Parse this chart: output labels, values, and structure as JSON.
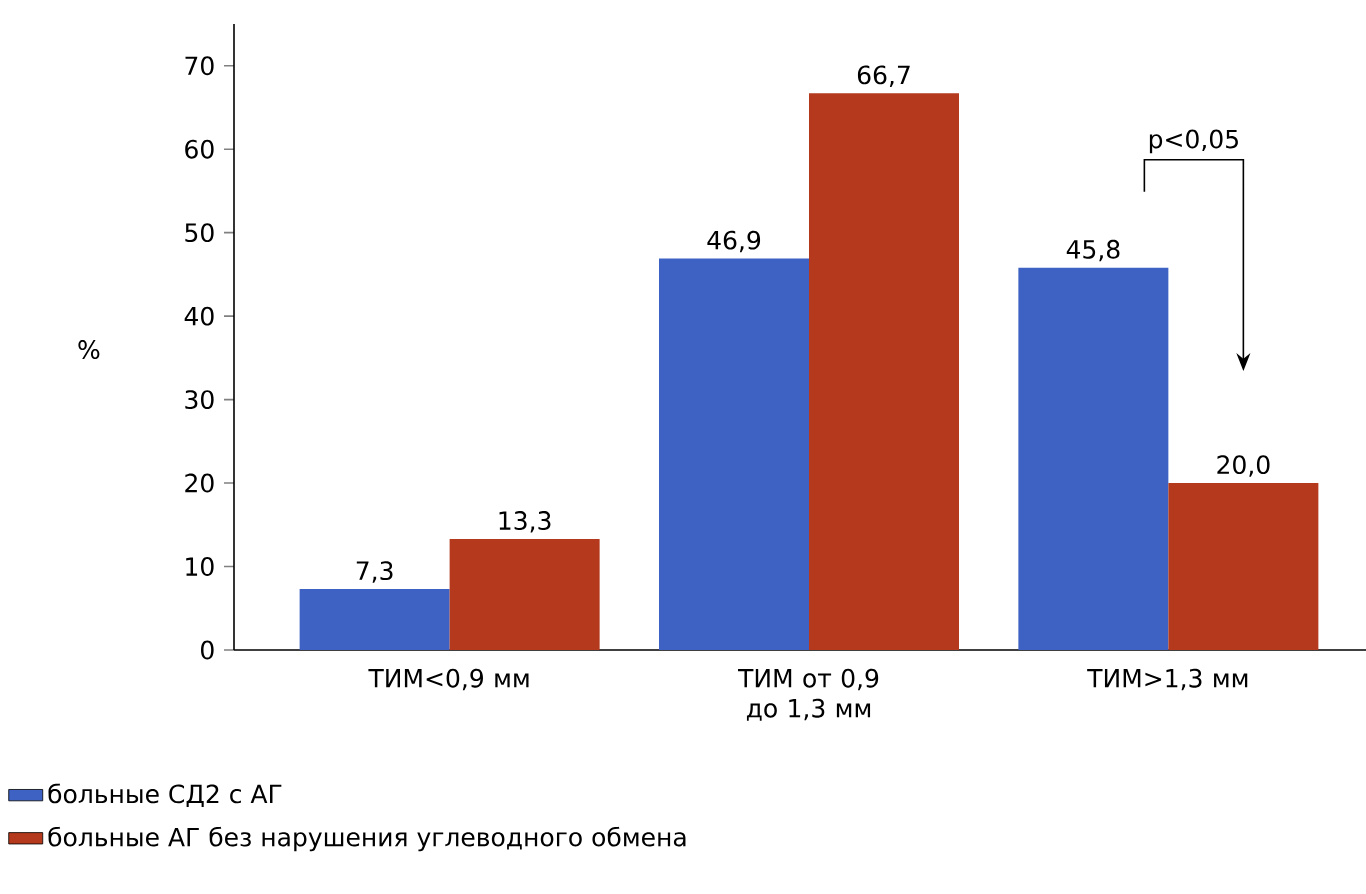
{
  "chart_data": {
    "type": "bar",
    "ylabel": "%",
    "categories": [
      "ТИМ<0,9 мм",
      "ТИМ от 0,9 до 1,3 мм",
      "ТИМ>1,3 мм"
    ],
    "series": [
      {
        "name": "больные СД2 с АГ",
        "color": "#3d62c4",
        "values": [
          7.3,
          46.9,
          45.8
        ],
        "value_labels": [
          "7,3",
          "46,9",
          "45,8"
        ]
      },
      {
        "name": "больные АГ без нарушения углеводного обмена",
        "color": "#b5391c",
        "values": [
          13.3,
          66.7,
          20.0
        ],
        "value_labels": [
          "13,3",
          "66,7",
          "20,0"
        ]
      }
    ],
    "ylim": [
      0,
      75
    ],
    "yticks": [
      0,
      10,
      20,
      30,
      40,
      50,
      60,
      70
    ],
    "legend": "bottom left",
    "grid": false,
    "annotations": [
      "p<0,05"
    ]
  }
}
